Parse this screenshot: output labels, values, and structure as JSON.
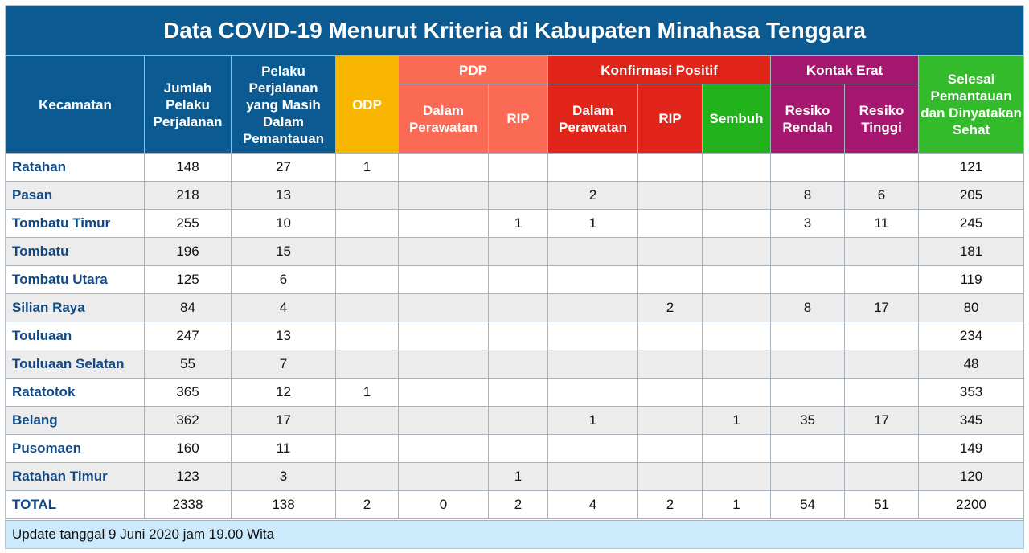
{
  "title": "Data COVID-19 Menurut Kriteria di Kabupaten Minahasa Tenggara",
  "headers": {
    "kecamatan": "Kecamatan",
    "jumlah": "Jumlah Pelaku Perjalanan",
    "pelaku": "Pelaku Perjalanan yang Masih Dalam Pemantauan",
    "odp": "ODP",
    "pdp": "PDP",
    "pdp_dalam": "Dalam Perawatan",
    "pdp_rip": "RIP",
    "konfirmasi": "Konfirmasi Positif",
    "konf_dalam": "Dalam Perawatan",
    "konf_rip": "RIP",
    "konf_sembuh": "Sembuh",
    "kontak": "Kontak Erat",
    "kontak_rendah": "Resiko Rendah",
    "kontak_tinggi": "Resiko Tinggi",
    "selesai": "Selesai Pemantauan dan Dinyatakan Sehat"
  },
  "rows": [
    {
      "name": "Ratahan",
      "jumlah": "148",
      "pelaku": "27",
      "odp": "1",
      "pdp_dalam": "",
      "pdp_rip": "",
      "konf_dalam": "",
      "konf_rip": "",
      "konf_sembuh": "",
      "rendah": "",
      "tinggi": "",
      "selesai": "121"
    },
    {
      "name": "Pasan",
      "jumlah": "218",
      "pelaku": "13",
      "odp": "",
      "pdp_dalam": "",
      "pdp_rip": "",
      "konf_dalam": "2",
      "konf_rip": "",
      "konf_sembuh": "",
      "rendah": "8",
      "tinggi": "6",
      "selesai": "205"
    },
    {
      "name": "Tombatu Timur",
      "jumlah": "255",
      "pelaku": "10",
      "odp": "",
      "pdp_dalam": "",
      "pdp_rip": "1",
      "konf_dalam": "1",
      "konf_rip": "",
      "konf_sembuh": "",
      "rendah": "3",
      "tinggi": "11",
      "selesai": "245"
    },
    {
      "name": "Tombatu",
      "jumlah": "196",
      "pelaku": "15",
      "odp": "",
      "pdp_dalam": "",
      "pdp_rip": "",
      "konf_dalam": "",
      "konf_rip": "",
      "konf_sembuh": "",
      "rendah": "",
      "tinggi": "",
      "selesai": "181"
    },
    {
      "name": "Tombatu Utara",
      "jumlah": "125",
      "pelaku": "6",
      "odp": "",
      "pdp_dalam": "",
      "pdp_rip": "",
      "konf_dalam": "",
      "konf_rip": "",
      "konf_sembuh": "",
      "rendah": "",
      "tinggi": "",
      "selesai": "119"
    },
    {
      "name": "Silian Raya",
      "jumlah": "84",
      "pelaku": "4",
      "odp": "",
      "pdp_dalam": "",
      "pdp_rip": "",
      "konf_dalam": "",
      "konf_rip": "2",
      "konf_sembuh": "",
      "rendah": "8",
      "tinggi": "17",
      "selesai": "80"
    },
    {
      "name": "Touluaan",
      "jumlah": "247",
      "pelaku": "13",
      "odp": "",
      "pdp_dalam": "",
      "pdp_rip": "",
      "konf_dalam": "",
      "konf_rip": "",
      "konf_sembuh": "",
      "rendah": "",
      "tinggi": "",
      "selesai": "234"
    },
    {
      "name": "Touluaan Selatan",
      "jumlah": "55",
      "pelaku": "7",
      "odp": "",
      "pdp_dalam": "",
      "pdp_rip": "",
      "konf_dalam": "",
      "konf_rip": "",
      "konf_sembuh": "",
      "rendah": "",
      "tinggi": "",
      "selesai": "48"
    },
    {
      "name": "Ratatotok",
      "jumlah": "365",
      "pelaku": "12",
      "odp": "1",
      "pdp_dalam": "",
      "pdp_rip": "",
      "konf_dalam": "",
      "konf_rip": "",
      "konf_sembuh": "",
      "rendah": "",
      "tinggi": "",
      "selesai": "353"
    },
    {
      "name": "Belang",
      "jumlah": "362",
      "pelaku": "17",
      "odp": "",
      "pdp_dalam": "",
      "pdp_rip": "",
      "konf_dalam": "1",
      "konf_rip": "",
      "konf_sembuh": "1",
      "rendah": "35",
      "tinggi": "17",
      "selesai": "345"
    },
    {
      "name": "Pusomaen",
      "jumlah": "160",
      "pelaku": "11",
      "odp": "",
      "pdp_dalam": "",
      "pdp_rip": "",
      "konf_dalam": "",
      "konf_rip": "",
      "konf_sembuh": "",
      "rendah": "",
      "tinggi": "",
      "selesai": "149"
    },
    {
      "name": "Ratahan Timur",
      "jumlah": "123",
      "pelaku": "3",
      "odp": "",
      "pdp_dalam": "",
      "pdp_rip": "1",
      "konf_dalam": "",
      "konf_rip": "",
      "konf_sembuh": "",
      "rendah": "",
      "tinggi": "",
      "selesai": "120"
    }
  ],
  "total": {
    "name": "TOTAL",
    "jumlah": "2338",
    "pelaku": "138",
    "odp": "2",
    "pdp_dalam": "0",
    "pdp_rip": "2",
    "konf_dalam": "4",
    "konf_rip": "2",
    "konf_sembuh": "1",
    "rendah": "54",
    "tinggi": "51",
    "selesai": "2200"
  },
  "footer": "Update tanggal 9 Juni 2020 jam 19.00 Wita",
  "colors": {
    "header_blue": "#0b5a92",
    "odp_yellow": "#f7b500",
    "pdp_salmon": "#fb6a55",
    "konfirmasi_red": "#e2251b",
    "sembuh_green": "#22b21b",
    "kontak_purple": "#a6176f",
    "selesai_green": "#33bb2c",
    "footer_bg": "#cdeafc"
  }
}
